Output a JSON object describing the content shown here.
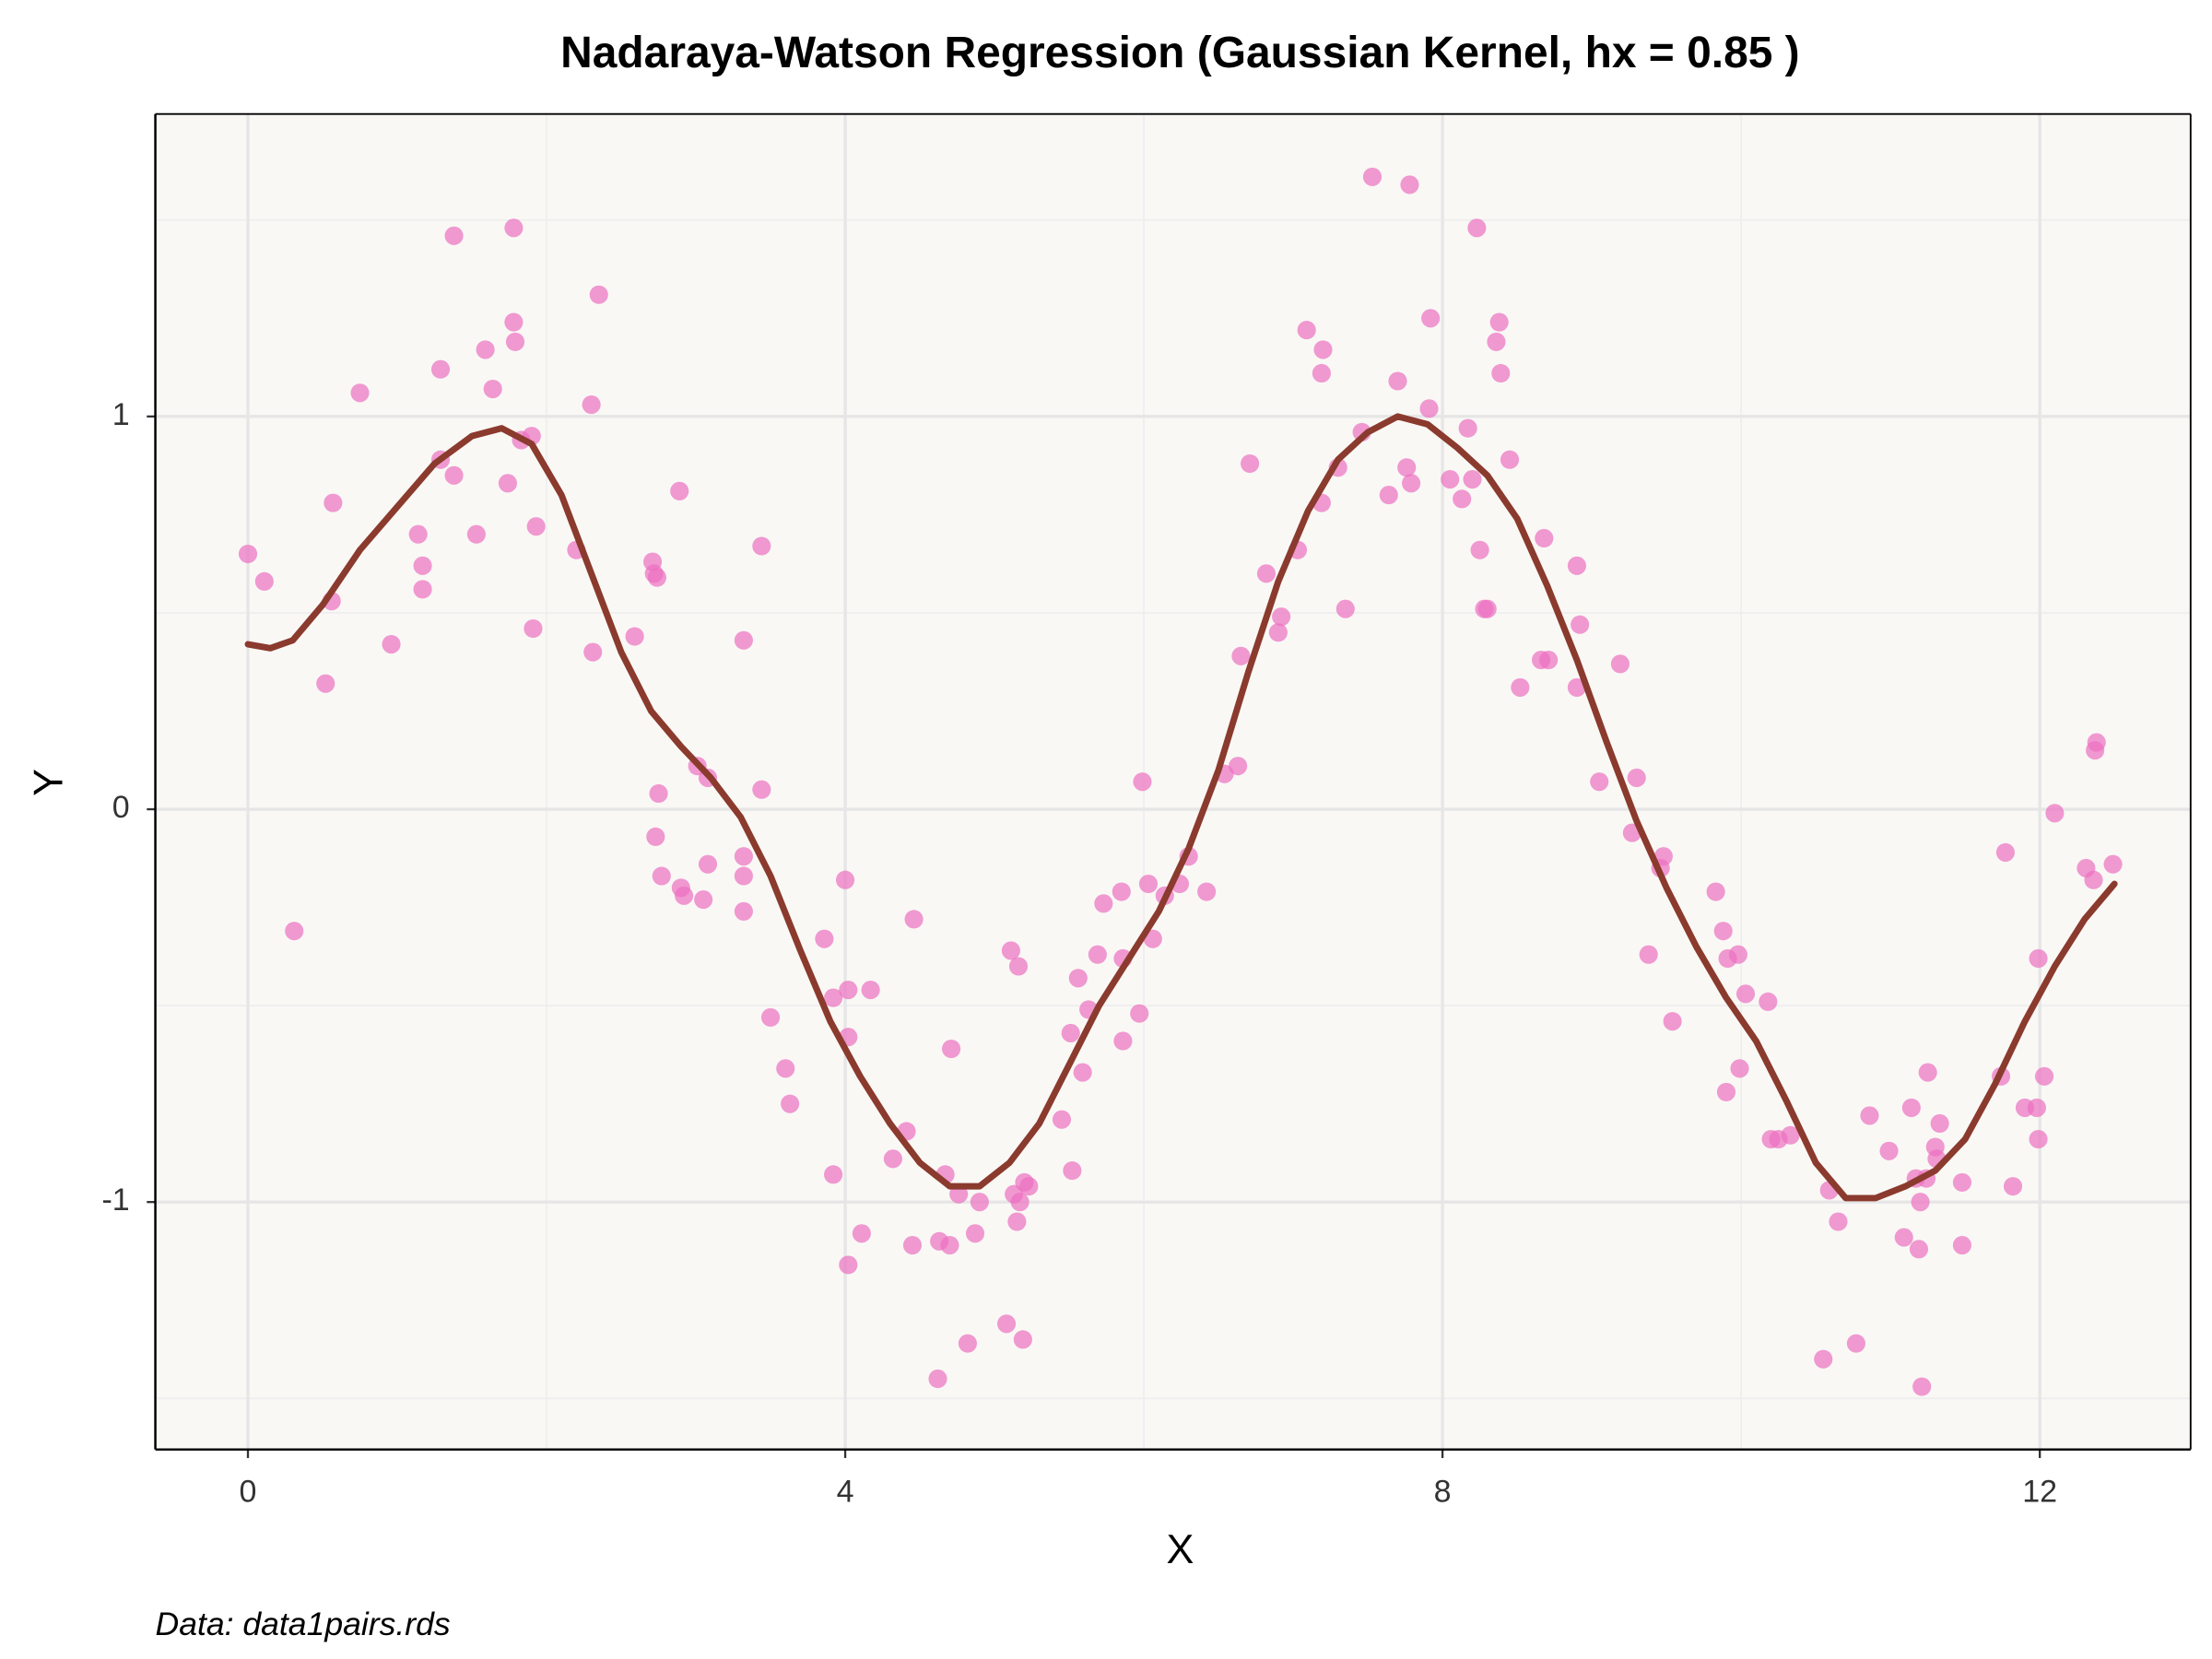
{
  "chart_data": {
    "type": "scatter",
    "title": "Nadaraya-Watson Regression (Gaussian Kernel, hx = 0.85 )",
    "xlabel": "X",
    "ylabel": "Y",
    "caption": "Data: data1pairs.rds",
    "xlim": [
      -0.62,
      13.01
    ],
    "ylim": [
      -1.63,
      1.77
    ],
    "xticks": [
      0,
      4,
      8,
      12
    ],
    "yticks": [
      -1,
      0,
      1
    ],
    "x_minor_ticks": [
      2,
      6,
      10
    ],
    "y_minor_ticks": [
      -1.5,
      -0.5,
      0.5,
      1.5
    ],
    "grid": true,
    "background": "#f9f8f5",
    "series": [
      {
        "type": "scatter",
        "color": "#ec6fc1",
        "x": [
          0,
          0.11,
          0.31,
          0.52,
          0.56,
          0.57,
          0.75,
          0.96,
          1.14,
          1.17,
          1.17,
          1.29,
          1.29,
          1.38,
          1.38,
          1.53,
          1.59,
          1.64,
          1.74,
          1.78,
          1.78,
          1.79,
          1.83,
          1.9,
          1.91,
          1.93,
          2.2,
          2.3,
          2.31,
          2.35,
          2.59,
          2.71,
          2.72,
          2.74,
          2.73,
          2.75,
          2.77,
          2.89,
          2.9,
          2.92,
          3.01,
          3.05,
          3.08,
          3.08,
          3.32,
          3.32,
          3.32,
          3.32,
          3.44,
          3.44,
          3.5,
          3.6,
          3.63,
          3.86,
          3.92,
          3.92,
          4,
          4.02,
          4.02,
          4.02,
          4.11,
          4.17,
          4.32,
          4.41,
          4.45,
          4.46,
          4.62,
          4.63,
          4.67,
          4.7,
          4.71,
          4.76,
          4.82,
          4.87,
          4.9,
          5.08,
          5.11,
          5.13,
          5.15,
          5.16,
          5.17,
          5.19,
          5.2,
          5.23,
          5.45,
          5.51,
          5.52,
          5.56,
          5.59,
          5.63,
          5.69,
          5.73,
          5.85,
          5.86,
          5.86,
          5.97,
          5.99,
          6.03,
          6.06,
          6.14,
          6.24,
          6.3,
          6.42,
          6.54,
          6.63,
          6.65,
          6.71,
          6.82,
          6.9,
          6.92,
          7.03,
          7.09,
          7.19,
          7.19,
          7.2,
          7.3,
          7.35,
          7.46,
          7.53,
          7.64,
          7.7,
          7.76,
          7.78,
          7.79,
          7.91,
          7.92,
          8.05,
          8.13,
          8.17,
          8.2,
          8.23,
          8.25,
          8.28,
          8.3,
          8.36,
          8.38,
          8.39,
          8.45,
          8.52,
          8.66,
          8.68,
          8.71,
          8.9,
          8.9,
          8.92,
          9.05,
          9.19,
          9.27,
          9.3,
          9.38,
          9.46,
          9.48,
          9.54,
          9.83,
          9.88,
          9.9,
          9.91,
          9.98,
          9.99,
          10.03,
          10.18,
          10.2,
          10.25,
          10.33,
          10.55,
          10.59,
          10.65,
          10.77,
          10.86,
          10.99,
          11.09,
          11.14,
          11.17,
          11.19,
          11.2,
          11.21,
          11.24,
          11.25,
          11.3,
          11.31,
          11.33,
          11.48,
          11.48,
          11.74,
          11.77,
          11.82,
          11.9,
          11.98,
          11.99,
          11.99,
          12.03,
          12.1,
          12.31,
          12.36,
          12.37,
          12.38,
          12.49
        ],
        "values": [
          0.65,
          0.58,
          -0.31,
          0.32,
          0.53,
          0.78,
          1.06,
          0.42,
          0.7,
          0.56,
          0.62,
          1.12,
          0.89,
          1.46,
          0.85,
          0.7,
          1.17,
          1.07,
          0.83,
          1.48,
          1.24,
          1.19,
          0.94,
          0.95,
          0.46,
          0.72,
          0.66,
          1.03,
          0.4,
          1.31,
          0.44,
          0.63,
          0.6,
          0.59,
          -0.07,
          0.04,
          -0.17,
          0.81,
          -0.2,
          -0.22,
          0.11,
          -0.23,
          0.08,
          -0.14,
          0.43,
          -0.12,
          -0.17,
          -0.26,
          0.67,
          0.05,
          -0.53,
          -0.66,
          -0.75,
          -0.33,
          -0.48,
          -0.93,
          -0.18,
          -1.16,
          -0.46,
          -0.58,
          -1.08,
          -0.46,
          -0.89,
          -0.82,
          -1.11,
          -0.28,
          -1.45,
          -1.1,
          -0.93,
          -1.11,
          -0.61,
          -0.98,
          -1.36,
          -1.08,
          -1,
          -1.31,
          -0.36,
          -0.98,
          -1.05,
          -0.4,
          -1,
          -1.35,
          -0.95,
          -0.96,
          -0.79,
          -0.57,
          -0.92,
          -0.43,
          -0.67,
          -0.51,
          -0.37,
          -0.24,
          -0.21,
          -0.38,
          -0.59,
          -0.52,
          0.07,
          -0.19,
          -0.33,
          -0.22,
          -0.19,
          -0.12,
          -0.21,
          0.09,
          0.11,
          0.39,
          0.88,
          0.6,
          0.45,
          0.49,
          0.66,
          1.22,
          0.78,
          1.11,
          1.17,
          0.87,
          0.51,
          0.96,
          1.61,
          0.8,
          1.09,
          0.87,
          1.59,
          0.83,
          1.02,
          1.25,
          0.84,
          0.79,
          0.97,
          0.84,
          1.48,
          0.66,
          0.51,
          0.51,
          1.19,
          1.24,
          1.11,
          0.89,
          0.31,
          0.38,
          0.69,
          0.38,
          0.31,
          0.62,
          0.47,
          0.07,
          0.37,
          -0.06,
          0.08,
          -0.37,
          -0.15,
          -0.12,
          -0.54,
          -0.21,
          -0.31,
          -0.72,
          -0.38,
          -0.37,
          -0.66,
          -0.47,
          -0.49,
          -0.84,
          -0.84,
          -0.83,
          -1.4,
          -0.97,
          -1.05,
          -1.36,
          -0.78,
          -0.87,
          -1.09,
          -0.76,
          -0.94,
          -1.12,
          -1,
          -1.47,
          -0.94,
          -0.67,
          -0.86,
          -0.89,
          -0.8,
          -0.95,
          -1.11,
          -0.68,
          -0.11,
          -0.96,
          -0.76,
          -0.76,
          -0.84,
          -0.38,
          -0.68,
          -0.01,
          -0.15,
          -0.18,
          0.15,
          0.17,
          -0.14
        ]
      },
      {
        "type": "line",
        "color": "#8b3a2e",
        "x": [
          0,
          0.15,
          0.3,
          0.5,
          0.75,
          1,
          1.25,
          1.5,
          1.7,
          1.9,
          2.1,
          2.3,
          2.5,
          2.7,
          2.9,
          3.1,
          3.3,
          3.5,
          3.7,
          3.9,
          4.1,
          4.3,
          4.5,
          4.7,
          4.9,
          5.1,
          5.3,
          5.5,
          5.7,
          5.9,
          6.1,
          6.3,
          6.5,
          6.7,
          6.9,
          7.1,
          7.3,
          7.5,
          7.7,
          7.9,
          8.1,
          8.3,
          8.5,
          8.7,
          8.9,
          9.1,
          9.3,
          9.5,
          9.7,
          9.9,
          10.1,
          10.3,
          10.5,
          10.7,
          10.9,
          11.1,
          11.3,
          11.5,
          11.7,
          11.9,
          12.1,
          12.3,
          12.5
        ],
        "values": [
          0.42,
          0.41,
          0.43,
          0.52,
          0.66,
          0.77,
          0.88,
          0.95,
          0.97,
          0.93,
          0.8,
          0.6,
          0.4,
          0.25,
          0.16,
          0.08,
          -0.02,
          -0.17,
          -0.36,
          -0.54,
          -0.68,
          -0.8,
          -0.9,
          -0.96,
          -0.96,
          -0.9,
          -0.8,
          -0.65,
          -0.5,
          -0.38,
          -0.26,
          -0.1,
          0.1,
          0.35,
          0.58,
          0.76,
          0.89,
          0.96,
          1,
          0.98,
          0.92,
          0.85,
          0.74,
          0.57,
          0.38,
          0.17,
          -0.03,
          -0.2,
          -0.35,
          -0.48,
          -0.59,
          -0.74,
          -0.9,
          -0.99,
          -0.99,
          -0.96,
          -0.92,
          -0.84,
          -0.7,
          -0.54,
          -0.4,
          -0.28,
          -0.19
        ]
      }
    ]
  }
}
